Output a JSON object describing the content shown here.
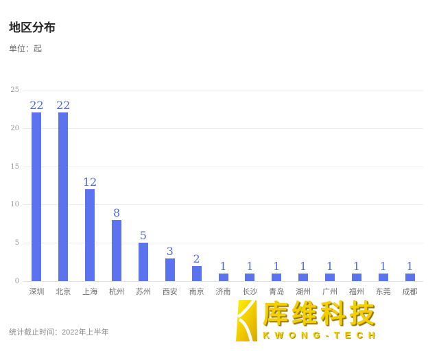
{
  "header": {
    "title": "地区分布",
    "unit": "单位：起"
  },
  "footer": {
    "note": "统计截止时间：2022年上半年"
  },
  "logo": {
    "cn": "库维科技",
    "en": "KWONG-TECH",
    "gold": "#f3cf00"
  },
  "colors": {
    "bar": "#5b73ee",
    "value_label": "#4a6bdc",
    "gridline": "#ececec",
    "axis_line": "#e0e0e0",
    "ytick": "#999999",
    "xlabel": "#6b6b6b"
  },
  "chart_data": {
    "type": "bar",
    "title": "地区分布",
    "unit_label": "单位：起",
    "categories": [
      "深圳",
      "北京",
      "上海",
      "杭州",
      "苏州",
      "西安",
      "南京",
      "济南",
      "长沙",
      "青岛",
      "湖州",
      "广州",
      "福州",
      "东莞",
      "成都"
    ],
    "values": [
      22,
      22,
      12,
      8,
      5,
      3,
      2,
      1,
      1,
      1,
      1,
      1,
      1,
      1,
      1
    ],
    "xlabel": "",
    "ylabel": "",
    "ylim": [
      0,
      25
    ],
    "ytick_step": 5,
    "grid": true,
    "legend": "none",
    "value_labels_shown": true
  }
}
